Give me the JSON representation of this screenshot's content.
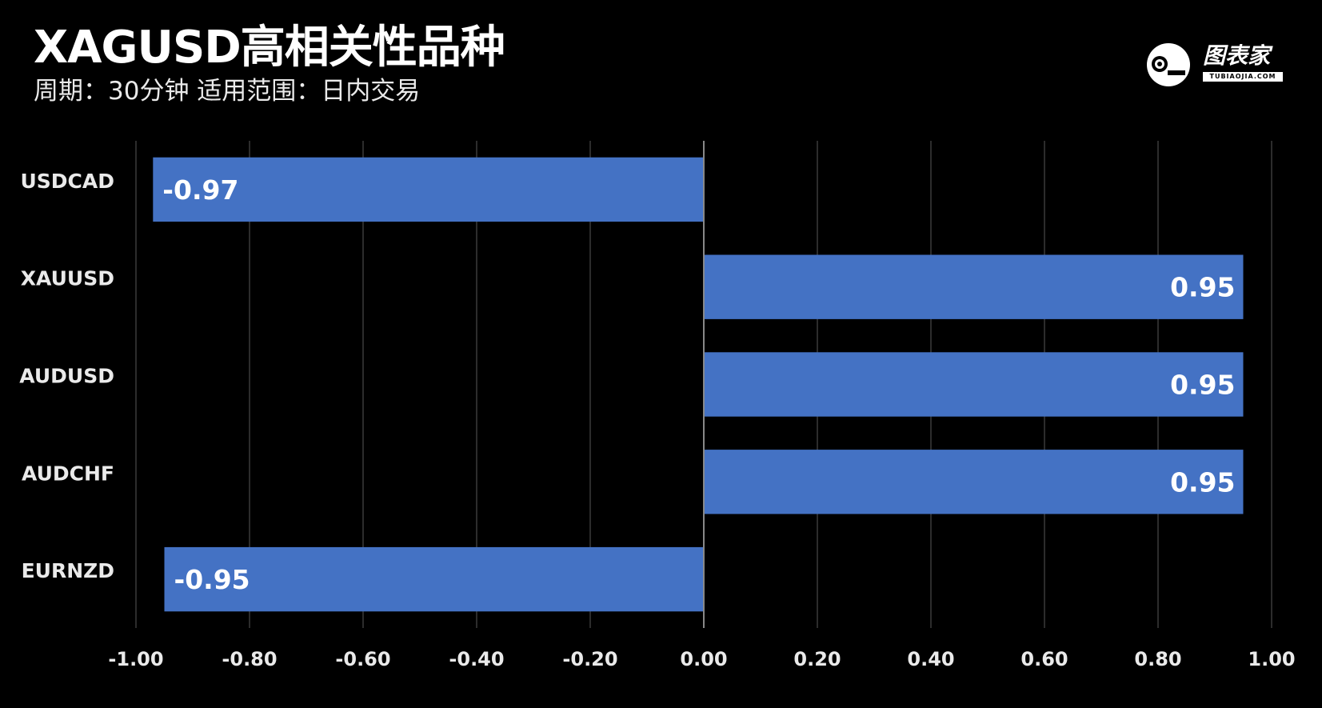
{
  "title": "XAGUSD高相关性品种",
  "subtitle": "周期：30分钟 适用范围：日内交易",
  "logo": {
    "text": "图表家",
    "subtext": "TUBIAOJIA.COM",
    "icon": "robot-head-icon"
  },
  "colors": {
    "background": "#000000",
    "bar": "#4472C4",
    "grid": "#3a3a3a",
    "zero_line": "#888888"
  },
  "chart_data": {
    "type": "bar",
    "orientation": "horizontal",
    "categories": [
      "USDCAD",
      "XAUUSD",
      "AUDUSD",
      "AUDCHF",
      "EURNZD"
    ],
    "values": [
      -0.97,
      0.95,
      0.95,
      0.95,
      -0.95
    ],
    "value_labels": [
      "-0.97",
      "0.95",
      "0.95",
      "0.95",
      "-0.95"
    ],
    "xlim": [
      -1.0,
      1.0
    ],
    "xticks": [
      "-1.00",
      "-0.80",
      "-0.60",
      "-0.40",
      "-0.20",
      "0.00",
      "0.20",
      "0.40",
      "0.60",
      "0.80",
      "1.00"
    ],
    "grid": true,
    "legend": false
  }
}
